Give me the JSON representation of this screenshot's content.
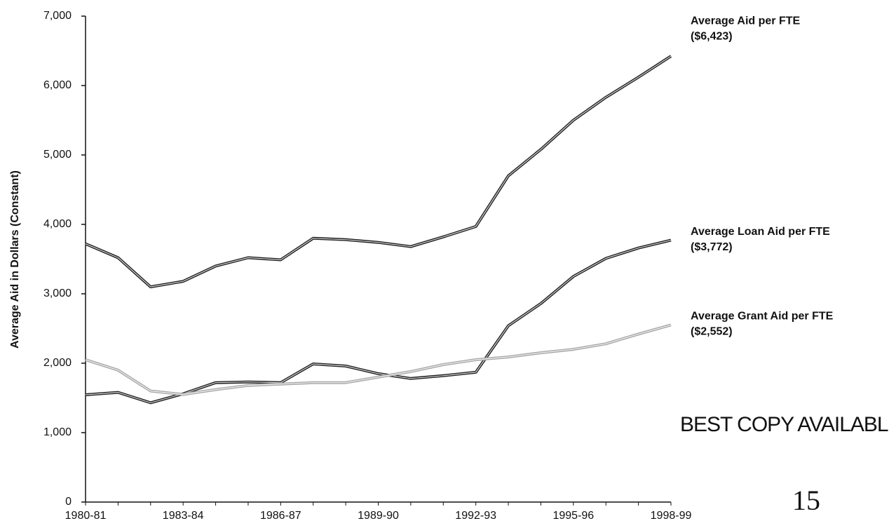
{
  "chart_data": {
    "type": "line",
    "y_label": "Average Aid in Dollars (Constant)",
    "categories": [
      "1980-81",
      null,
      null,
      "1983-84",
      null,
      null,
      "1986-87",
      null,
      null,
      "1989-90",
      null,
      null,
      "1992-93",
      null,
      null,
      "1995-96",
      null,
      null,
      "1998-99"
    ],
    "series": [
      {
        "name": "Average Aid per FTE",
        "label": "($6,423)",
        "color": "#222222",
        "values": [
          3720,
          3520,
          3100,
          3180,
          3400,
          3520,
          3490,
          3800,
          3780,
          3740,
          3680,
          3820,
          3970,
          4700,
          5080,
          5500,
          5830,
          6120,
          6423
        ]
      },
      {
        "name": "Average Loan Aid per FTE",
        "label": "($3,772)",
        "color": "#222222",
        "values": [
          1545,
          1580,
          1430,
          1560,
          1720,
          1730,
          1720,
          1990,
          1960,
          1850,
          1780,
          1820,
          1870,
          2540,
          2860,
          3250,
          3510,
          3660,
          3772
        ]
      },
      {
        "name": "Average Grant Aid per FTE",
        "label": "($2,552)",
        "color": "#a8a8a8",
        "values": [
          2050,
          1900,
          1600,
          1550,
          1620,
          1680,
          1700,
          1720,
          1720,
          1800,
          1880,
          1980,
          2050,
          2090,
          2150,
          2200,
          2280,
          2420,
          2552
        ]
      }
    ],
    "ylim": [
      0,
      7000
    ],
    "yticks": [
      0,
      {
        "value": 1000,
        "label": "1,000"
      },
      {
        "value": 2000,
        "label": "2,000"
      },
      {
        "value": 3000,
        "label": "3,000"
      },
      {
        "value": 4000,
        "label": "4,000"
      },
      {
        "value": 5000,
        "label": "5,000"
      },
      {
        "value": 6000,
        "label": "6,000"
      },
      {
        "value": 7000,
        "label": "7,000"
      }
    ],
    "annotations": [
      "BEST COPY AVAILABLE",
      "15"
    ]
  }
}
